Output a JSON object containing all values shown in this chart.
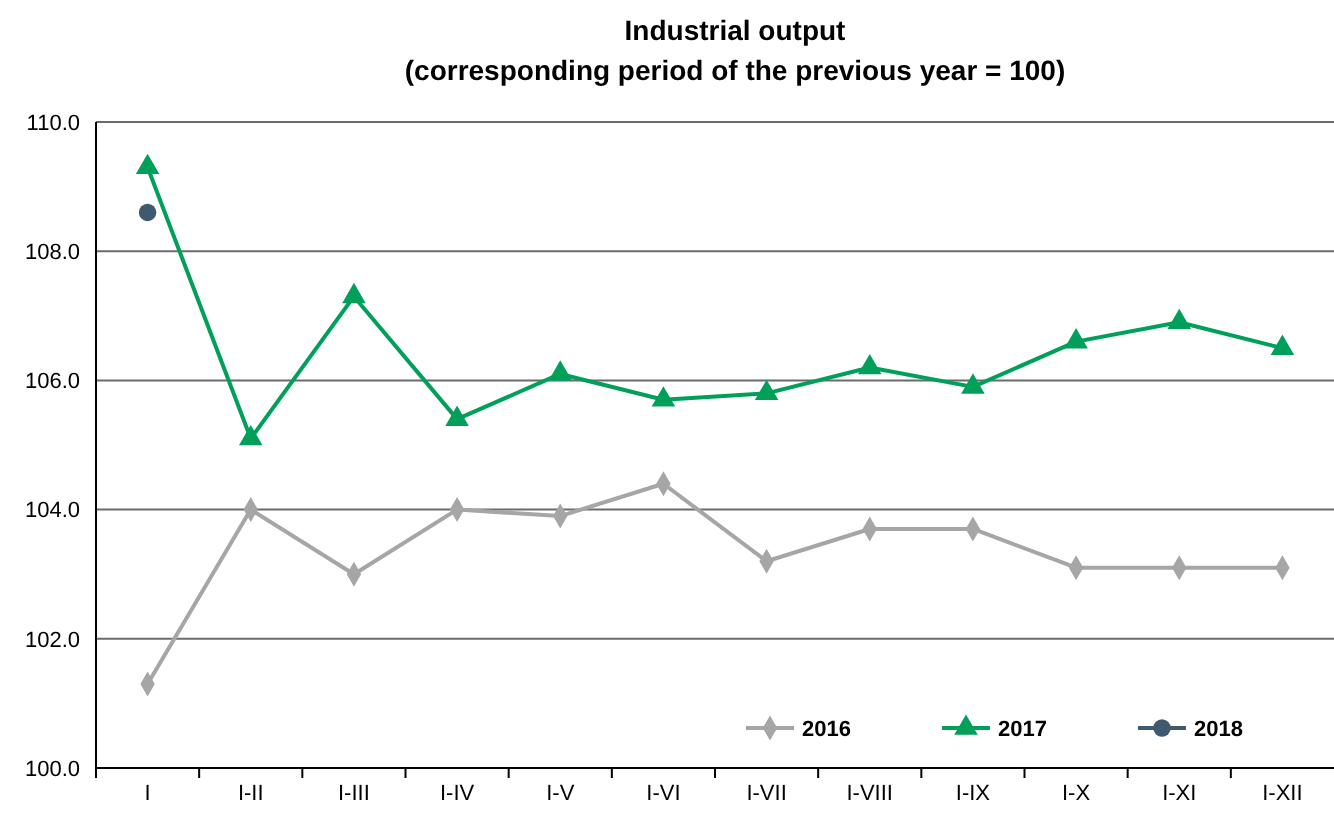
{
  "chart_data": {
    "type": "line",
    "title": "Industrial output",
    "subtitle": "(corresponding period of the previous year = 100)",
    "categories": [
      "I",
      "I-II",
      "I-III",
      "I-IV",
      "I-V",
      "I-VI",
      "I-VII",
      "I-VIII",
      "I-IX",
      "I-X",
      "I-XI",
      "I-XII"
    ],
    "series": [
      {
        "name": "2016",
        "color": "#a6a6a6",
        "marker": "diamond",
        "values": [
          101.3,
          104.0,
          103.0,
          104.0,
          103.9,
          104.4,
          103.2,
          103.7,
          103.7,
          103.1,
          103.1,
          103.1
        ]
      },
      {
        "name": "2017",
        "color": "#00a05a",
        "marker": "triangle",
        "values": [
          109.3,
          105.1,
          107.3,
          105.4,
          106.1,
          105.7,
          105.8,
          106.2,
          105.9,
          106.6,
          106.9,
          106.5
        ]
      },
      {
        "name": "2018",
        "color": "#3f5a6e",
        "marker": "circle",
        "values": [
          108.6,
          null,
          null,
          null,
          null,
          null,
          null,
          null,
          null,
          null,
          null,
          null
        ]
      }
    ],
    "ylim": [
      100,
      110
    ],
    "yticks": [
      {
        "value": 100,
        "label": "100.0"
      },
      {
        "value": 102,
        "label": "102.0"
      },
      {
        "value": 104,
        "label": "104.0"
      },
      {
        "value": 106,
        "label": "106.0"
      },
      {
        "value": 108,
        "label": "108.0"
      },
      {
        "value": 110,
        "label": "110.0"
      }
    ],
    "grid": "y",
    "legend": "bottom right"
  }
}
